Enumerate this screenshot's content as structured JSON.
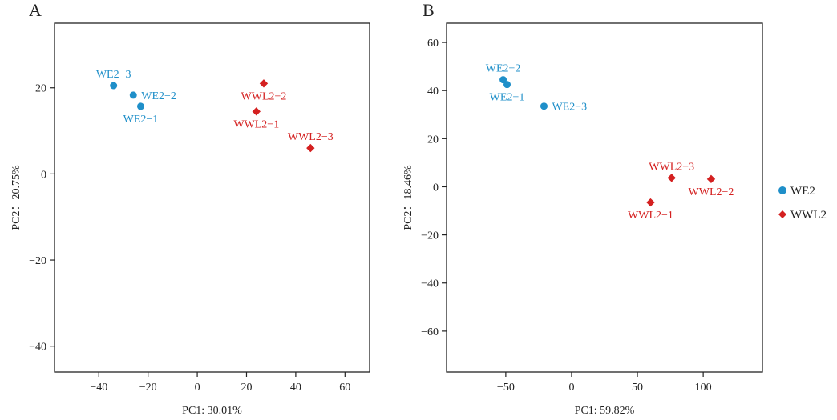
{
  "colors": {
    "we2": "#1f8fc9",
    "wwl2": "#d42020",
    "axis": "#222222"
  },
  "legend": {
    "items": [
      {
        "label": "WE2",
        "color": "#1f8fc9",
        "marker": "circle"
      },
      {
        "label": "WWL2",
        "color": "#d42020",
        "marker": "diamond"
      }
    ]
  },
  "chart_data": [
    {
      "type": "scatter",
      "panel": "A",
      "xlabel": "PC1: 30.01%",
      "ylabel": "PC2：20.75%",
      "xlim": [
        -58,
        70
      ],
      "ylim": [
        -46,
        35
      ],
      "xticks": [
        -40,
        -20,
        0,
        20,
        40,
        60
      ],
      "xtick_labels": [
        "−40",
        "−20",
        "0",
        "20",
        "40",
        "60"
      ],
      "yticks": [
        -40,
        -20,
        0,
        20
      ],
      "ytick_labels": [
        "−40",
        "−20",
        "0",
        "20"
      ],
      "series": [
        {
          "name": "WE2",
          "marker": "circle",
          "color": "#1f8fc9",
          "points": [
            {
              "label": "WE2−3",
              "x": -34,
              "y": 20.5,
              "label_pos": "above"
            },
            {
              "label": "WE2−2",
              "x": -26,
              "y": 18.3,
              "label_pos": "right"
            },
            {
              "label": "WE2−1",
              "x": -23,
              "y": 15.7,
              "label_pos": "below"
            }
          ]
        },
        {
          "name": "WWL2",
          "marker": "diamond",
          "color": "#d42020",
          "points": [
            {
              "label": "WWL2−2",
              "x": 27,
              "y": 21.0,
              "label_pos": "below"
            },
            {
              "label": "WWL2−1",
              "x": 24,
              "y": 14.5,
              "label_pos": "below"
            },
            {
              "label": "WWL2−3",
              "x": 46,
              "y": 6.0,
              "label_pos": "above"
            }
          ]
        }
      ]
    },
    {
      "type": "scatter",
      "panel": "B",
      "xlabel": "PC1: 59.82%",
      "ylabel": "PC2：18.46%",
      "xlim": [
        -95,
        145
      ],
      "ylim": [
        -77,
        68
      ],
      "xticks": [
        -50,
        0,
        50,
        100
      ],
      "xtick_labels": [
        "−50",
        "0",
        "50",
        "100"
      ],
      "yticks": [
        -60,
        -40,
        -20,
        0,
        20,
        40,
        60
      ],
      "ytick_labels": [
        "−60",
        "−40",
        "−20",
        "0",
        "20",
        "40",
        "60"
      ],
      "series": [
        {
          "name": "WE2",
          "marker": "circle",
          "color": "#1f8fc9",
          "points": [
            {
              "label": "WE2−2",
              "x": -52,
              "y": 44.5,
              "label_pos": "above"
            },
            {
              "label": "WE2−1",
              "x": -49,
              "y": 42.5,
              "label_pos": "below"
            },
            {
              "label": "WE2−3",
              "x": -21,
              "y": 33.5,
              "label_pos": "right"
            }
          ]
        },
        {
          "name": "WWL2",
          "marker": "diamond",
          "color": "#d42020",
          "points": [
            {
              "label": "WWL2−3",
              "x": 76,
              "y": 3.7,
              "label_pos": "above"
            },
            {
              "label": "WWL2−2",
              "x": 106,
              "y": 3.2,
              "label_pos": "below"
            },
            {
              "label": "WWL2−1",
              "x": 60,
              "y": -6.5,
              "label_pos": "below"
            }
          ]
        }
      ]
    }
  ]
}
